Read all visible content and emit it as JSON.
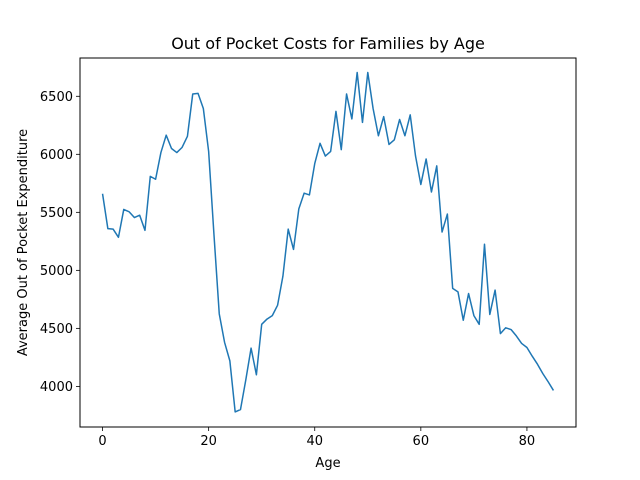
{
  "chart_data": {
    "type": "line",
    "title": "Out of Pocket Costs for Families by Age",
    "xlabel": "Age",
    "ylabel": "Average Out of Pocket Expenditure",
    "xlim": [
      -4.25,
      89.25
    ],
    "ylim": [
      3650,
      6830
    ],
    "x_ticks": [
      0,
      20,
      40,
      60,
      80
    ],
    "y_ticks": [
      4000,
      4500,
      5000,
      5500,
      6000,
      6500
    ],
    "grid": false,
    "color": "#1f77b4",
    "series": [
      {
        "x": [
          0,
          1,
          2,
          3,
          4,
          5,
          6,
          7,
          8,
          9,
          10,
          11,
          12,
          13,
          14,
          15,
          16,
          17,
          18,
          19,
          20,
          21,
          22,
          23,
          24,
          25,
          26,
          27,
          28,
          29,
          30,
          31,
          32,
          33,
          34,
          35,
          36,
          37,
          38,
          39,
          40,
          41,
          42,
          43,
          44,
          45,
          46,
          47,
          48,
          49,
          50,
          51,
          52,
          53,
          54,
          55,
          56,
          57,
          58,
          59,
          60,
          61,
          62,
          63,
          64,
          65,
          66,
          67,
          68,
          69,
          70,
          71,
          72,
          73,
          74,
          75,
          76,
          77,
          78,
          79,
          80,
          81,
          82,
          83,
          84,
          85
        ],
        "values": [
          5660,
          5360,
          5355,
          5285,
          5525,
          5505,
          5455,
          5475,
          5345,
          5810,
          5785,
          6015,
          6165,
          6050,
          6015,
          6060,
          6155,
          6520,
          6525,
          6395,
          6025,
          5310,
          4625,
          4380,
          4220,
          3780,
          3800,
          4055,
          4330,
          4100,
          4535,
          4580,
          4610,
          4700,
          4950,
          5355,
          5180,
          5530,
          5665,
          5650,
          5920,
          6095,
          5985,
          6025,
          6370,
          6040,
          6520,
          6305,
          6705,
          6275,
          6705,
          6395,
          6160,
          6325,
          6085,
          6125,
          6300,
          6160,
          6340,
          5985,
          5740,
          5960,
          5675,
          5900,
          5330,
          5485,
          4845,
          4815,
          4570,
          4800,
          4610,
          4535,
          5225,
          4620,
          4830,
          4455,
          4505,
          4490,
          4435,
          4370,
          4335,
          4260,
          4190,
          4110,
          4040,
          3965
        ]
      }
    ]
  }
}
